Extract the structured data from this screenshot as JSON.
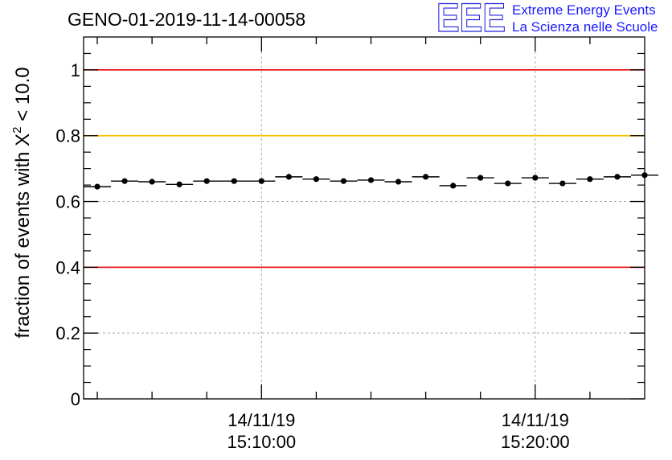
{
  "chart_data": {
    "type": "scatter",
    "title": "GENO-01-2019-11-14-00058",
    "logo": {
      "mark": "EEE",
      "line1": "Extreme Energy Events",
      "line2": "La Scienza nelle Scuole",
      "color": "#1a1aff"
    },
    "ylabel": {
      "prefix": "fraction of events with ",
      "chi": "X",
      "sup": "2",
      "suffix": " < 10.0"
    },
    "ylim": [
      0,
      1.1
    ],
    "yticks": [
      0,
      0.2,
      0.4,
      0.6,
      0.8,
      1
    ],
    "ytick_labels": [
      "0",
      "0.2",
      "0.4",
      "0.6",
      "0.8",
      "1"
    ],
    "xlim_minutes": [
      0,
      20.5
    ],
    "xticks": [
      {
        "minute": 6.5,
        "date": "14/11/19",
        "time": "15:10:00"
      },
      {
        "minute": 16.5,
        "date": "14/11/19",
        "time": "15:20:00"
      }
    ],
    "grid": true,
    "reference_lines": [
      {
        "y": 1.0,
        "color": "#e81a1a"
      },
      {
        "y": 0.8,
        "color": "#ffc000"
      },
      {
        "y": 0.4,
        "color": "#e81a1a"
      }
    ],
    "series": [
      {
        "name": "fraction",
        "bin_width_minutes": 1,
        "x_start_minute": 0,
        "values": [
          0.645,
          0.662,
          0.66,
          0.652,
          0.662,
          0.662,
          0.662,
          0.675,
          0.668,
          0.662,
          0.665,
          0.66,
          0.675,
          0.648,
          0.672,
          0.655,
          0.672,
          0.655,
          0.668,
          0.675,
          0.68
        ]
      }
    ]
  }
}
